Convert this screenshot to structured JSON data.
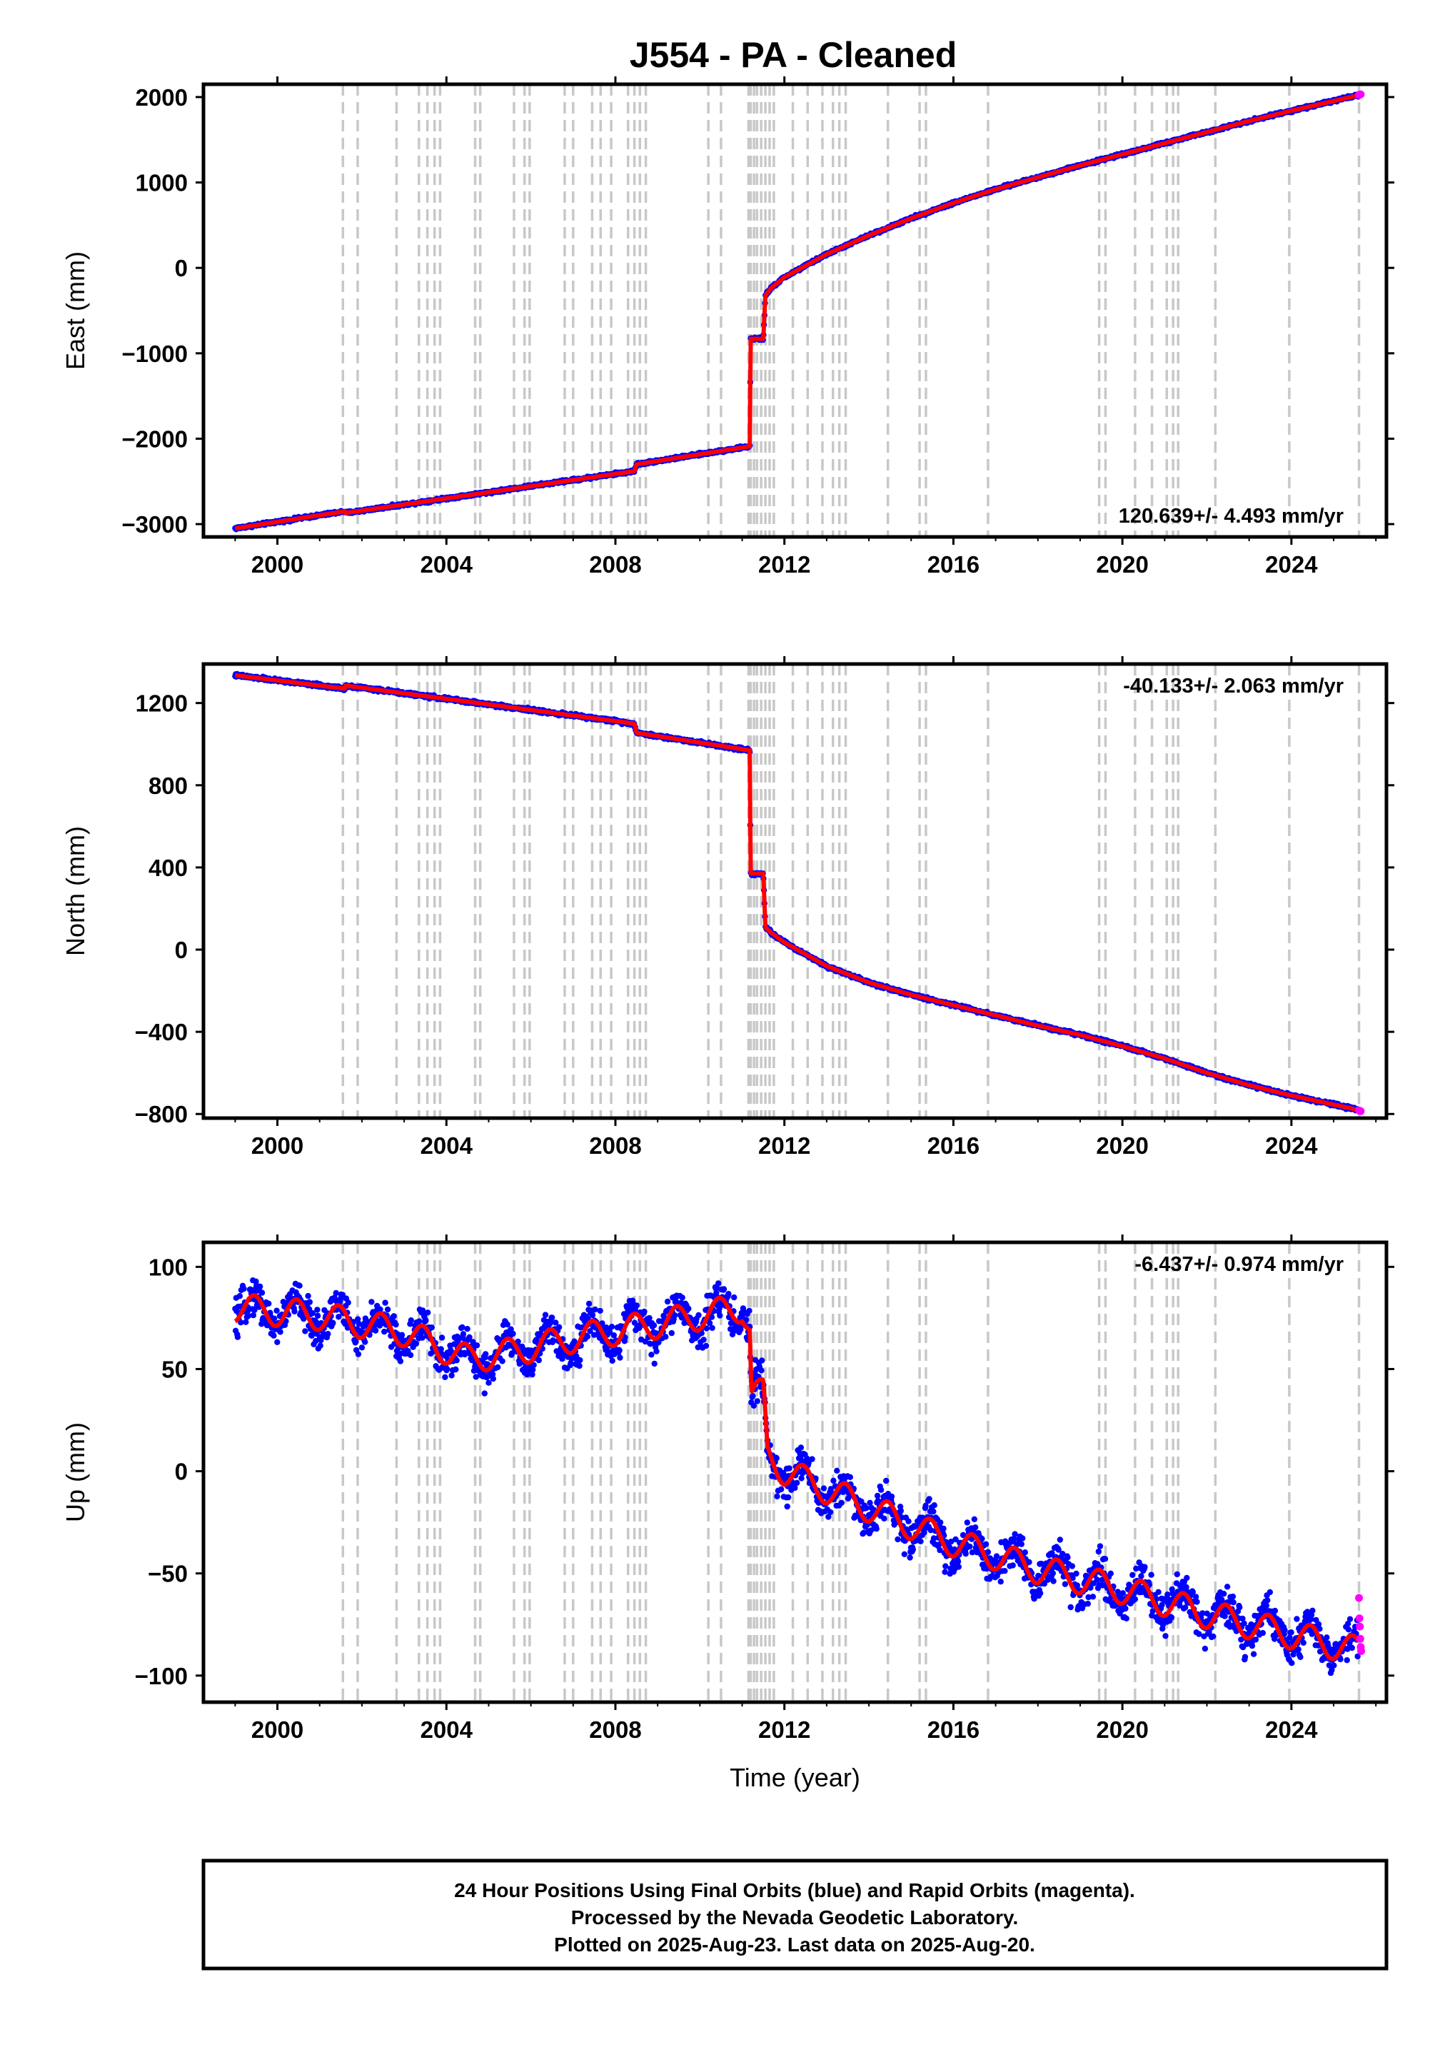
{
  "title": "J554  - PA - Cleaned",
  "footer": {
    "lines": [
      "24 Hour Positions Using Final Orbits (blue) and Rapid Orbits (magenta).",
      "Processed by the Nevada Geodetic Laboratory.",
      "Plotted on 2025-Aug-23. Last data on 2025-Aug-20."
    ]
  },
  "colors": {
    "final": "#0000ff",
    "rapid": "#ff00ff",
    "model": "#ff0000",
    "event_line": "#c8c8c8"
  },
  "event_years": [
    2001.55,
    2001.9,
    2002.82,
    2003.35,
    2003.55,
    2003.72,
    2003.85,
    2004.68,
    2004.8,
    2005.6,
    2005.85,
    2005.97,
    2006.8,
    2007.0,
    2007.45,
    2007.65,
    2007.9,
    2008.3,
    2008.45,
    2008.58,
    2008.72,
    2010.2,
    2010.5,
    2011.15,
    2011.2,
    2011.28,
    2011.35,
    2011.45,
    2011.55,
    2011.65,
    2011.75,
    2012.2,
    2012.55,
    2012.9,
    2013.15,
    2013.3,
    2013.45,
    2014.45,
    2015.2,
    2015.35,
    2016.82,
    2019.45,
    2019.6,
    2020.3,
    2020.7,
    2021.05,
    2021.2,
    2021.32,
    2022.2,
    2023.95,
    2025.6
  ],
  "chart_data": [
    {
      "type": "scatter",
      "name": "east",
      "ylabel": "East (mm)",
      "xlim": [
        1998.25,
        2026.25
      ],
      "ylim": [
        -3150,
        2150
      ],
      "xticks": [
        2000,
        2004,
        2008,
        2012,
        2016,
        2020,
        2024
      ],
      "yticks": [
        -3000,
        -2000,
        -1000,
        0,
        1000,
        2000
      ],
      "ytick_labels": [
        "−3000",
        "−2000",
        "−1000",
        "0",
        "1000",
        "2000"
      ],
      "xtick_labels": [
        "2000",
        "2004",
        "2008",
        "2012",
        "2016",
        "2020",
        "2024"
      ],
      "rate_text": "120.639+/- 4.493 mm/yr",
      "rate_position": "bottom-right",
      "noise_mm": 12,
      "seasonal_mm": 0,
      "series": [
        {
          "name": "final",
          "x": [
            1999.0,
            2001.6,
            2001.61,
            2008.45,
            2008.5,
            2011.18,
            2011.2,
            2011.5,
            2011.55,
            2011.7,
            2012.0,
            2013.0,
            2014.0,
            2015.0,
            2016.0,
            2017.0,
            2018.0,
            2019.0,
            2020.0,
            2021.0,
            2022.0,
            2023.0,
            2024.0,
            2025.58
          ],
          "y": [
            -3050,
            -2850,
            -2870,
            -2380,
            -2300,
            -2090,
            -830,
            -830,
            -320,
            -230,
            -110,
            160,
            380,
            580,
            760,
            920,
            1060,
            1200,
            1330,
            1460,
            1590,
            1720,
            1840,
            2020
          ]
        }
      ],
      "rapid": {
        "x": [
          2025.6,
          2025.62,
          2025.64
        ],
        "y": [
          2025,
          2030,
          2032
        ]
      }
    },
    {
      "type": "scatter",
      "name": "north",
      "ylabel": "North (mm)",
      "xlim": [
        1998.25,
        2026.25
      ],
      "ylim": [
        -820,
        1390
      ],
      "xticks": [
        2000,
        2004,
        2008,
        2012,
        2016,
        2020,
        2024
      ],
      "yticks": [
        -800,
        -400,
        0,
        400,
        800,
        1200
      ],
      "ytick_labels": [
        "−800",
        "−400",
        "0",
        "400",
        "800",
        "1200"
      ],
      "xtick_labels": [
        "2000",
        "2004",
        "2008",
        "2012",
        "2016",
        "2020",
        "2024"
      ],
      "rate_text": "-40.133+/- 2.063 mm/yr",
      "rate_position": "top-right",
      "noise_mm": 6,
      "seasonal_mm": 0,
      "series": [
        {
          "name": "final",
          "x": [
            1999.0,
            2001.6,
            2001.61,
            2008.45,
            2008.5,
            2011.18,
            2011.2,
            2011.5,
            2011.55,
            2011.7,
            2012.0,
            2013.0,
            2014.0,
            2015.0,
            2016.0,
            2017.0,
            2018.0,
            2019.0,
            2020.0,
            2021.0,
            2022.0,
            2023.0,
            2024.0,
            2025.58
          ],
          "y": [
            1335,
            1270,
            1285,
            1100,
            1055,
            970,
            370,
            370,
            110,
            80,
            35,
            -80,
            -160,
            -220,
            -270,
            -320,
            -370,
            -415,
            -470,
            -530,
            -600,
            -660,
            -710,
            -780
          ]
        }
      ],
      "rapid": {
        "x": [
          2025.6,
          2025.62,
          2025.64
        ],
        "y": [
          -783,
          -785,
          -786
        ]
      }
    },
    {
      "type": "scatter",
      "name": "up",
      "ylabel": "Up (mm)",
      "xlabel": "Time (year)",
      "xlim": [
        1998.25,
        2026.25
      ],
      "ylim": [
        -113,
        112
      ],
      "xticks": [
        2000,
        2004,
        2008,
        2012,
        2016,
        2020,
        2024
      ],
      "yticks": [
        -100,
        -50,
        0,
        50,
        100
      ],
      "ytick_labels": [
        "−100",
        "−50",
        "0",
        "50",
        "100"
      ],
      "xtick_labels": [
        "2000",
        "2004",
        "2008",
        "2012",
        "2016",
        "2020",
        "2024"
      ],
      "rate_text": "-6.437+/- 0.974 mm/yr",
      "rate_position": "top-right",
      "noise_mm": 7,
      "seasonal_mm": 7,
      "series": [
        {
          "name": "final",
          "x": [
            1999.0,
            2001.0,
            2003.0,
            2004.5,
            2005.5,
            2007.0,
            2009.0,
            2011.0,
            2011.18,
            2011.22,
            2011.5,
            2011.6,
            2012.0,
            2014.0,
            2016.0,
            2018.0,
            2020.0,
            2022.0,
            2024.0,
            2025.58
          ],
          "y": [
            80,
            76,
            68,
            55,
            58,
            65,
            72,
            80,
            70,
            38,
            38,
            8,
            0,
            -18,
            -35,
            -48,
            -58,
            -70,
            -80,
            -88
          ]
        }
      ],
      "rapid": {
        "x": [
          2025.6,
          2025.61,
          2025.62,
          2025.63,
          2025.64,
          2025.65
        ],
        "y": [
          -62,
          -72,
          -76,
          -82,
          -86,
          -88
        ]
      }
    }
  ]
}
